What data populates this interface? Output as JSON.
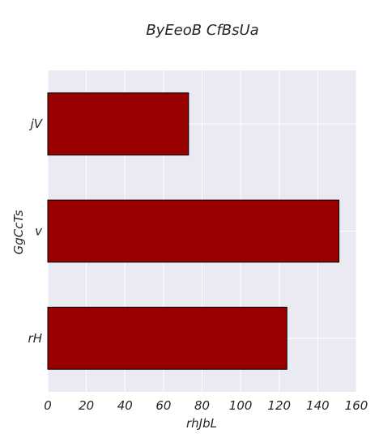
{
  "chart_data": {
    "type": "bar",
    "orientation": "horizontal",
    "title": "ByEeoB CfBsUa",
    "xlabel": "rhJbL",
    "ylabel": "GgCcTs",
    "categories": [
      "jV",
      "v",
      "rH"
    ],
    "values": [
      73,
      151,
      124
    ],
    "xlim": [
      0,
      160
    ],
    "xticks": [
      0,
      20,
      40,
      60,
      80,
      100,
      120,
      140,
      160
    ],
    "grid": true,
    "colors": {
      "bar": "#990000",
      "bar_edge": "#000000",
      "plot_background": "#eaeaf2",
      "grid": "#ffffff"
    }
  }
}
